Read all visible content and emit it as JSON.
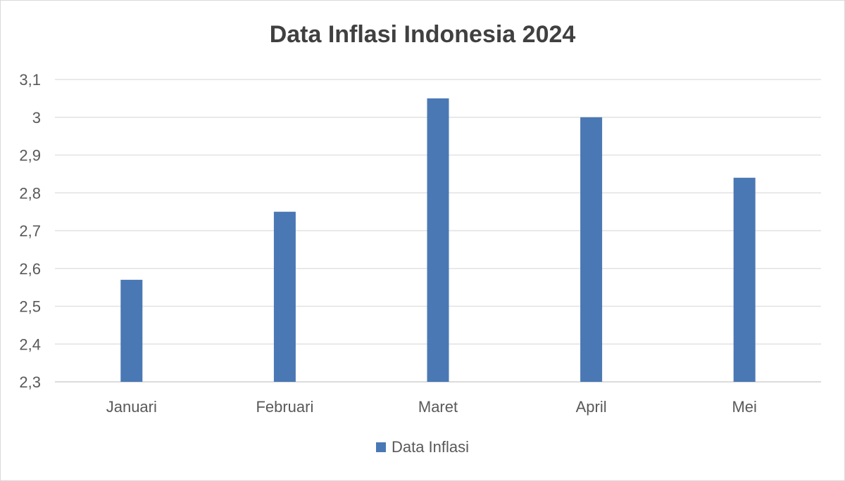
{
  "chart_data": {
    "type": "bar",
    "title": "Data Inflasi Indonesia 2024",
    "categories": [
      "Januari",
      "Februari",
      "Maret",
      "April",
      "Mei"
    ],
    "series": [
      {
        "name": "Data Inflasi",
        "values": [
          2.57,
          2.75,
          3.05,
          3.0,
          2.84
        ],
        "color": "#4a78b4"
      }
    ],
    "xlabel": "",
    "ylabel": "",
    "ylim": [
      2.3,
      3.1
    ],
    "yticks": [
      "2,3",
      "2,4",
      "2,5",
      "2,6",
      "2,7",
      "2,8",
      "2,9",
      "3",
      "3,1"
    ],
    "grid": true,
    "legend_position": "bottom"
  }
}
